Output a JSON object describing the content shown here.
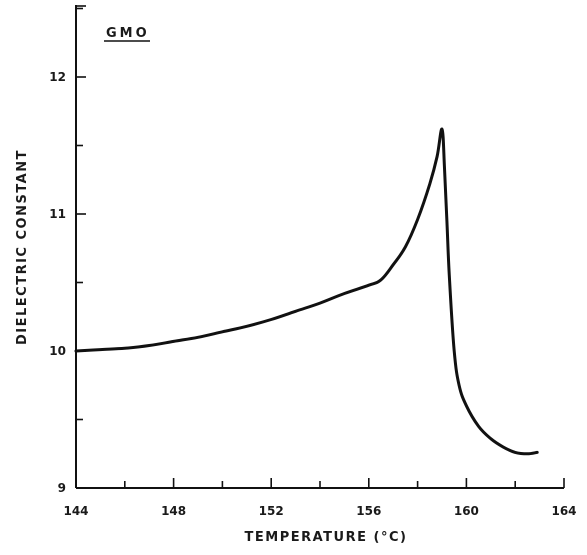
{
  "chart_data": {
    "type": "line",
    "title": "GMO",
    "xlabel": "TEMPERATURE (°C)",
    "ylabel": "DIELECTRIC CONSTANT",
    "xlim": [
      144,
      164
    ],
    "ylim": [
      9,
      13
    ],
    "x_ticks": [
      "144",
      "148",
      "152",
      "156",
      "160",
      "164"
    ],
    "y_ticks": [
      "9",
      "10",
      "11",
      "12"
    ],
    "grid": false,
    "line_color": "#111111",
    "series": [
      {
        "x": [
          144.0,
          145.0,
          146.0,
          147.0,
          148.0,
          149.0,
          150.0,
          151.0,
          152.0,
          153.0,
          154.0,
          155.0,
          156.0,
          156.5,
          157.0,
          157.5,
          158.0,
          158.5,
          158.8,
          159.0,
          159.1,
          159.2,
          159.3,
          159.5,
          159.7,
          160.0,
          160.5,
          161.0,
          161.5,
          162.0,
          162.5,
          162.9
        ],
        "y": [
          10.0,
          10.01,
          10.02,
          10.04,
          10.07,
          10.1,
          10.14,
          10.18,
          10.23,
          10.29,
          10.35,
          10.42,
          10.48,
          10.52,
          10.63,
          10.76,
          10.96,
          11.22,
          11.42,
          11.62,
          11.35,
          10.95,
          10.55,
          10.0,
          9.75,
          9.6,
          9.45,
          9.36,
          9.3,
          9.26,
          9.25,
          9.26
        ]
      }
    ]
  }
}
